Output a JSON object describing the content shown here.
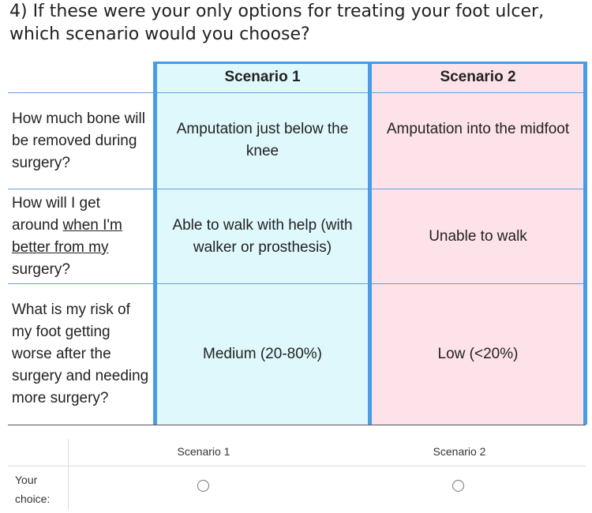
{
  "question": "4) If these were your only options for treating your foot ulcer, which scenario would you choose?",
  "table": {
    "columns": [
      "Scenario 1",
      "Scenario 2"
    ],
    "rows": [
      {
        "label": [
          "How much bone will be removed during surgery?"
        ],
        "cells": [
          "Amputation just below the knee",
          "Amputation into the midfoot"
        ]
      },
      {
        "label": [
          "How will I get around ",
          "when I'm better from my",
          " surgery?"
        ],
        "cells": [
          "Able to walk with help (with walker or prosthesis)",
          "Unable to walk"
        ]
      },
      {
        "label": [
          "What is my risk of my foot getting worse after the surgery and needing more surgery?"
        ],
        "cells": [
          "Medium (20-80%)",
          "Low (<20%)"
        ]
      }
    ]
  },
  "choice": {
    "columns": [
      "Scenario 1",
      "Scenario 2"
    ],
    "label": "Your choice:"
  }
}
